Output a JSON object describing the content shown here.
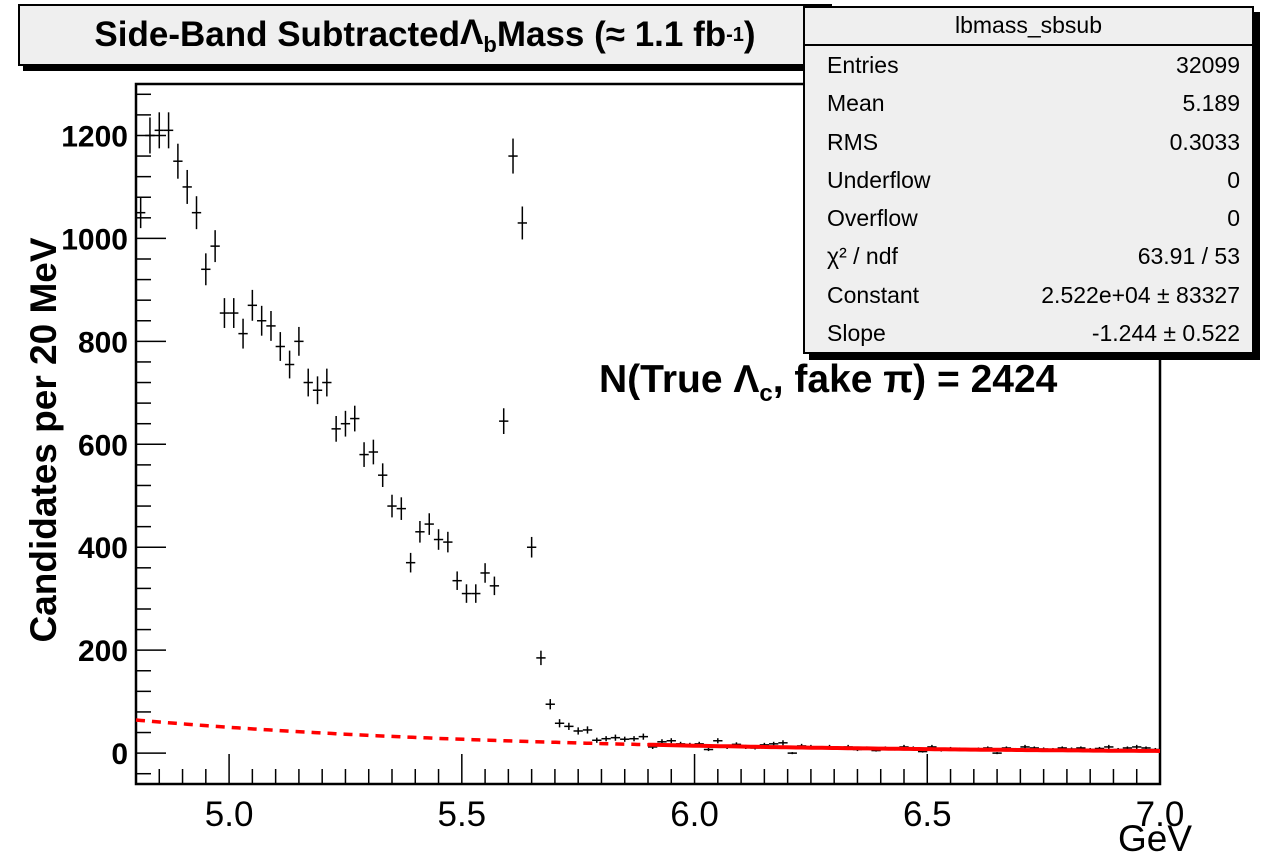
{
  "title": {
    "prefix": "Side-Band Subtracted ",
    "symbol": "Λ",
    "symbol_sub": "b",
    "middle": " Mass (≈ 1.1 fb",
    "sup": "-1",
    "suffix": ")"
  },
  "stats": {
    "name": "lbmass_sbsub",
    "rows": [
      {
        "key": "Entries",
        "value": "32099"
      },
      {
        "key": "Mean",
        "value": "5.189"
      },
      {
        "key": "RMS",
        "value": "0.3033"
      },
      {
        "key": "Underflow",
        "value": "0"
      },
      {
        "key": "Overflow",
        "value": "0"
      },
      {
        "key": "χ² / ndf",
        "value": "63.91 / 53"
      },
      {
        "key": "Constant",
        "value": "2.522e+04 ± 83327"
      },
      {
        "key": "Slope",
        "value": "-1.244 ± 0.522"
      }
    ]
  },
  "annotation": {
    "prefix": "N(True ",
    "symbol": "Λ",
    "symbol_sub": "c",
    "suffix": ", fake π) = 2424"
  },
  "axes": {
    "ylabel": "Candidates per 20 MeV",
    "xunit": "GeV"
  },
  "colors": {
    "fit": "#ff0000",
    "frame": "#000000",
    "box_fill": "#efefef"
  },
  "chart_data": {
    "type": "scatter",
    "title": "Side-Band Subtracted Λb Mass (≈ 1.1 fb-1)",
    "xlabel": "GeV",
    "ylabel": "Candidates per 20 MeV",
    "xlim": [
      4.8,
      7.0
    ],
    "ylim": [
      -60,
      1300
    ],
    "x_ticks": [
      5.0,
      5.5,
      6.0,
      6.5,
      7.0
    ],
    "x_tick_labels": [
      "5.0",
      "5.5",
      "6.0",
      "6.5",
      "7.0"
    ],
    "y_ticks": [
      0,
      200,
      400,
      600,
      800,
      1000,
      1200
    ],
    "y_tick_labels": [
      "0",
      "200",
      "400",
      "600",
      "800",
      "1000",
      "1200"
    ],
    "grid": false,
    "bin_width": 0.02,
    "series": [
      {
        "x": [
          4.81,
          4.83,
          4.85,
          4.87,
          4.89,
          4.91,
          4.93,
          4.95,
          4.97,
          4.99,
          5.01,
          5.03,
          5.05,
          5.07,
          5.09,
          5.11,
          5.13,
          5.15,
          5.17,
          5.19,
          5.21,
          5.23,
          5.25,
          5.27,
          5.29,
          5.31,
          5.33,
          5.35,
          5.37,
          5.39,
          5.41,
          5.43,
          5.45,
          5.47,
          5.49,
          5.51,
          5.53,
          5.55,
          5.57,
          5.59,
          5.61,
          5.63,
          5.65,
          5.67,
          5.69,
          5.71,
          5.73,
          5.75,
          5.77,
          5.79,
          5.81,
          5.83,
          5.85,
          5.87,
          5.89,
          5.91,
          5.93,
          5.95,
          5.97,
          5.99,
          6.01,
          6.03,
          6.05,
          6.07,
          6.09,
          6.11,
          6.13,
          6.15,
          6.17,
          6.19,
          6.21,
          6.23,
          6.25,
          6.27,
          6.29,
          6.31,
          6.33,
          6.35,
          6.37,
          6.39,
          6.41,
          6.43,
          6.45,
          6.47,
          6.49,
          6.51,
          6.53,
          6.55,
          6.57,
          6.59,
          6.61,
          6.63,
          6.65,
          6.67,
          6.69,
          6.71,
          6.73,
          6.75,
          6.77,
          6.79,
          6.81,
          6.83,
          6.85,
          6.87,
          6.89,
          6.91,
          6.93,
          6.95,
          6.97,
          6.99
        ],
        "y": [
          1050,
          1200,
          1210,
          1210,
          1150,
          1100,
          1050,
          940,
          985,
          855,
          855,
          815,
          870,
          840,
          830,
          790,
          755,
          800,
          720,
          705,
          720,
          630,
          640,
          650,
          580,
          585,
          540,
          480,
          475,
          370,
          430,
          445,
          415,
          410,
          335,
          310,
          310,
          350,
          325,
          645,
          1160,
          1030,
          400,
          185,
          95,
          58,
          52,
          43,
          45,
          25,
          28,
          30,
          27,
          28,
          32,
          12,
          22,
          24,
          18,
          16,
          18,
          7,
          24,
          12,
          17,
          12,
          10,
          16,
          18,
          20,
          0,
          14,
          12,
          10,
          12,
          10,
          12,
          7,
          10,
          5,
          10,
          8,
          12,
          10,
          3,
          12,
          6,
          9,
          8,
          7,
          8,
          10,
          0,
          10,
          7,
          12,
          10,
          8,
          7,
          10,
          8,
          10,
          7,
          9,
          12,
          7,
          10,
          12,
          10,
          7
        ],
        "y_err": [
          30,
          35,
          35,
          35,
          34,
          33,
          32,
          31,
          31,
          29,
          29,
          29,
          30,
          29,
          29,
          28,
          27,
          28,
          27,
          27,
          27,
          25,
          25,
          25,
          24,
          24,
          23,
          22,
          22,
          19,
          21,
          21,
          20,
          20,
          18,
          18,
          18,
          19,
          18,
          25,
          34,
          32,
          20,
          14,
          10,
          8,
          7,
          7,
          7,
          5,
          5,
          6,
          5,
          5,
          6,
          4,
          5,
          5,
          4,
          4,
          4,
          3,
          5,
          4,
          4,
          4,
          3,
          4,
          4,
          5,
          2,
          4,
          4,
          3,
          4,
          3,
          4,
          3,
          3,
          2,
          3,
          3,
          4,
          3,
          2,
          4,
          3,
          3,
          3,
          3,
          3,
          3,
          2,
          3,
          3,
          4,
          3,
          3,
          3,
          3,
          3,
          3,
          3,
          3,
          4,
          3,
          3,
          4,
          3,
          3
        ]
      },
      {
        "name": "fit",
        "fit_function": "exp(p0 + p1*x)",
        "p0": 10.135,
        "p1": -1.244,
        "fit_range": [
          5.9,
          7.0
        ],
        "extrapolated_range": [
          4.8,
          5.9
        ]
      }
    ]
  }
}
